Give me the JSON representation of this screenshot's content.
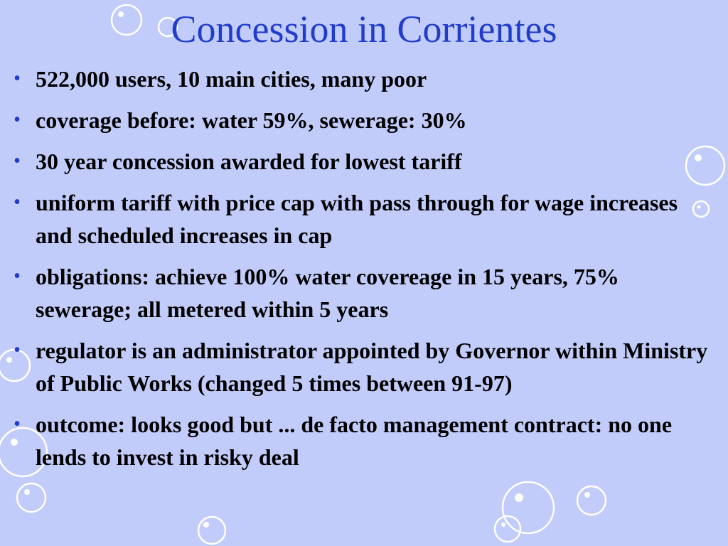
{
  "slide": {
    "title": "Concession in Corrientes",
    "bullet_symbol": "•",
    "colors": {
      "background": "#c2ccfa",
      "title": "#1f3ccc",
      "bullet": "#1f3ccc",
      "text": "#000000",
      "bubble": "#ffffff"
    },
    "bullets": [
      "522,000 users, 10 main cities, many poor",
      "coverage before: water 59%, sewerage: 30%",
      "30 year concession awarded for lowest tariff",
      "uniform tariff with price cap with pass through for wage increases and scheduled increases in cap",
      "obligations: achieve 100% water covereage in 15 years, 75% sewerage; all metered within 5 years",
      "regulator is an administrator appointed by Governor within Ministry of Public Works (changed 5 times between 91-97)",
      "outcome:  looks good but ... de facto management contract: no one lends to invest in risky deal"
    ]
  }
}
